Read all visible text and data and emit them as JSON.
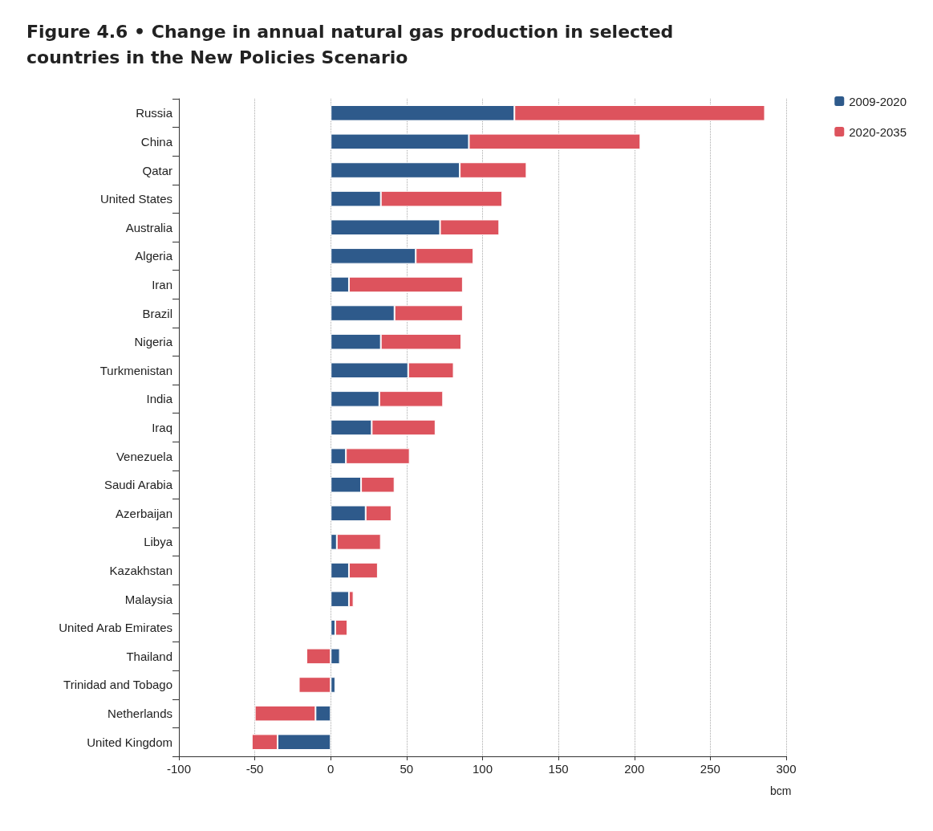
{
  "chart_data": {
    "type": "bar",
    "orientation": "horizontal",
    "stacked": true,
    "title": "Figure 4.6 • Change in annual natural gas production in selected countries in the New Policies Scenario",
    "xlabel": "bcm",
    "categories": [
      "Russia",
      "China",
      "Qatar",
      "United States",
      "Australia",
      "Algeria",
      "Iran",
      "Brazil",
      "Nigeria",
      "Turkmenistan",
      "India",
      "Iraq",
      "Venezuela",
      "Saudi Arabia",
      "Azerbaijan",
      "Libya",
      "Kazakhstan",
      "Malaysia",
      "United Arab Emirates",
      "Thailand",
      "Trinidad and Tobago",
      "Netherlands",
      "United Kingdom"
    ],
    "series": [
      {
        "name": "2009-2020",
        "color": "#2e5a8b",
        "values": [
          121,
          91,
          85,
          33,
          72,
          56,
          12,
          42,
          33,
          51,
          32,
          27,
          10,
          20,
          23,
          4,
          12,
          12,
          3,
          6,
          3,
          -10,
          -35
        ]
      },
      {
        "name": "2020-2035",
        "color": "#dd535d",
        "values": [
          165,
          113,
          44,
          80,
          39,
          38,
          75,
          45,
          53,
          30,
          42,
          42,
          42,
          22,
          17,
          29,
          19,
          3,
          8,
          -16,
          -21,
          -40,
          -17
        ]
      }
    ],
    "xlim": [
      -100,
      300
    ],
    "xticks": [
      -100,
      -50,
      0,
      50,
      100,
      150,
      200,
      250,
      300
    ],
    "grid": "x",
    "legend": "top right"
  }
}
